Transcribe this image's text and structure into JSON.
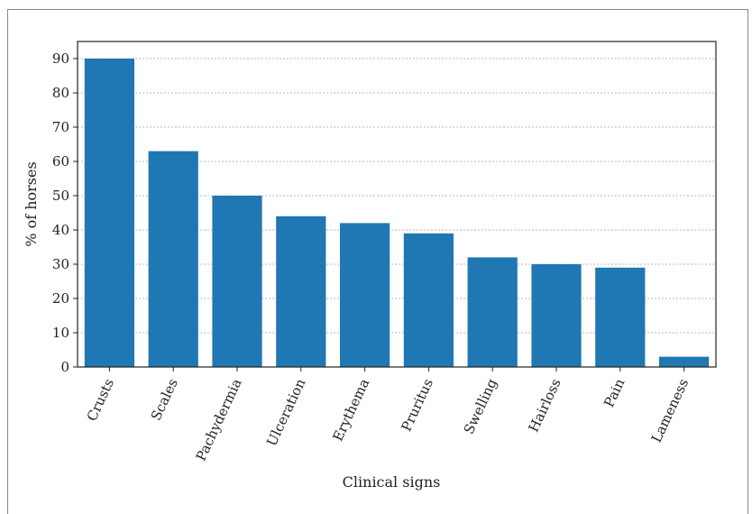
{
  "chart_data": {
    "type": "bar",
    "title": "",
    "xlabel": "Clinical signs",
    "ylabel": "% of horses",
    "categories": [
      "Crusts",
      "Scales",
      "Pachydermia",
      "Ulceration",
      "Erythema",
      "Pruritus",
      "Swelling",
      "Hairloss",
      "Pain",
      "Lameness"
    ],
    "values": [
      90,
      63,
      50,
      44,
      42,
      39,
      32,
      30,
      29,
      3
    ],
    "ylim": [
      0,
      95
    ],
    "yticks": [
      0,
      10,
      20,
      30,
      40,
      50,
      60,
      70,
      80,
      90
    ],
    "grid": "horizontal, dashed",
    "legend": "none",
    "bar_color": "#1f77b4"
  }
}
